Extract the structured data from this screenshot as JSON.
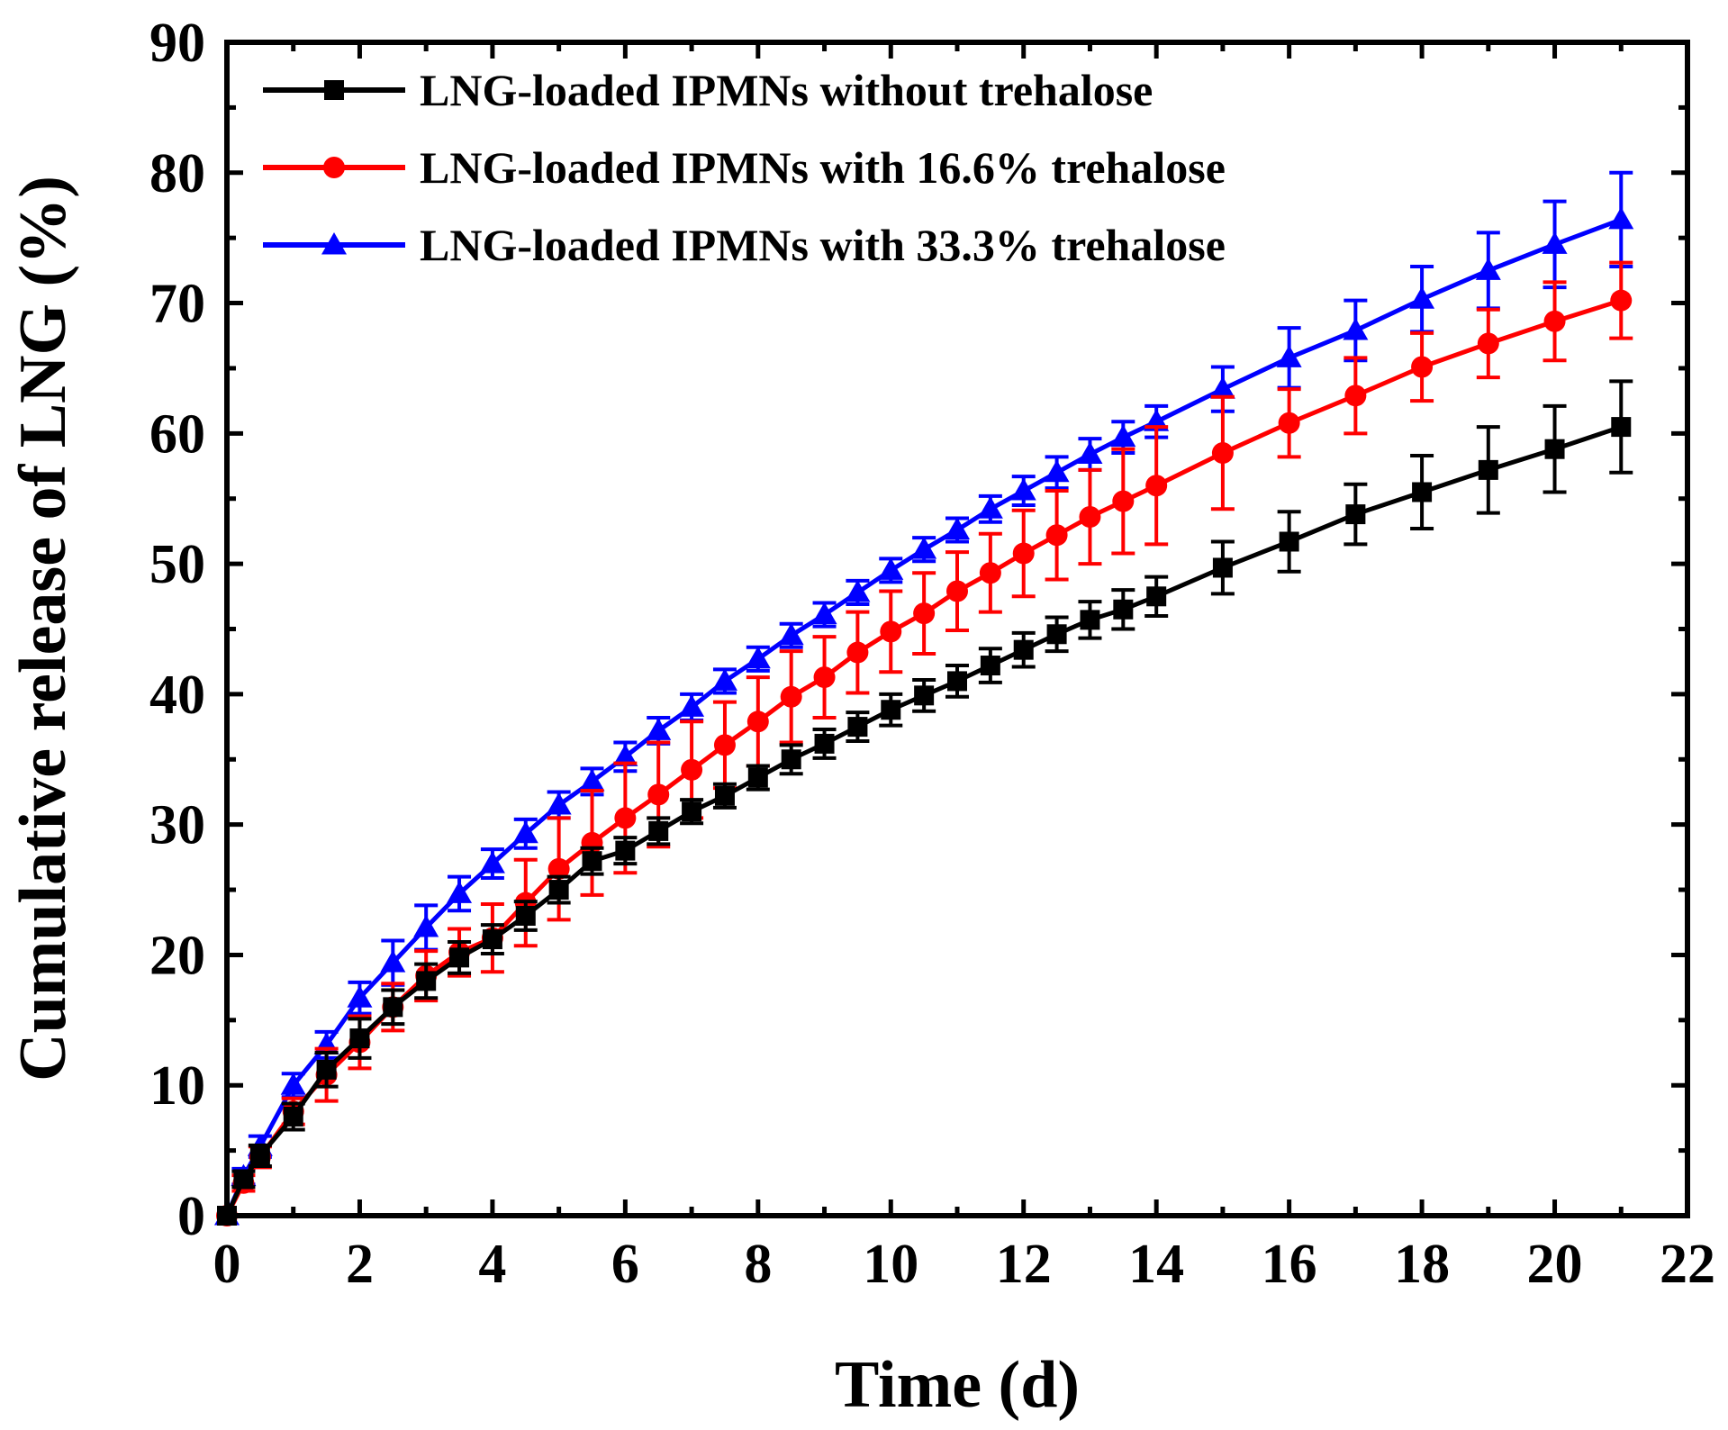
{
  "chart_data": {
    "type": "line",
    "title": "",
    "xlabel": "Time (d)",
    "ylabel": "Cumulative release of LNG (%)",
    "xlim": [
      0,
      22
    ],
    "ylim": [
      0,
      90
    ],
    "xticks": [
      0,
      2,
      4,
      6,
      8,
      10,
      12,
      14,
      16,
      18,
      20,
      22
    ],
    "yticks": [
      0,
      10,
      20,
      30,
      40,
      50,
      60,
      70,
      80,
      90
    ],
    "xtick_labels": [
      "0",
      "2",
      "4",
      "6",
      "8",
      "10",
      "12",
      "14",
      "16",
      "18",
      "20",
      "22"
    ],
    "ytick_labels": [
      "0",
      "10",
      "20",
      "30",
      "40",
      "50",
      "60",
      "70",
      "80",
      "90"
    ],
    "grid": false,
    "legend_position": "top-left",
    "x": [
      0,
      0.25,
      0.5,
      1,
      1.5,
      2,
      2.5,
      3,
      3.5,
      4,
      4.5,
      5,
      5.5,
      6,
      6.5,
      7,
      7.5,
      8,
      8.5,
      9,
      9.5,
      10,
      10.5,
      11,
      11.5,
      12,
      12.5,
      13,
      13.5,
      14,
      15,
      16,
      17,
      18,
      19,
      20,
      21
    ],
    "series": [
      {
        "name": "LNG-loaded IPMNs without trehalose",
        "color": "#000000",
        "marker": "square",
        "values": [
          0,
          2.8,
          4.6,
          7.6,
          11.2,
          13.6,
          16.0,
          18.0,
          19.8,
          21.2,
          23.0,
          25.0,
          27.2,
          28.0,
          29.5,
          31.0,
          32.2,
          33.6,
          35.0,
          36.2,
          37.5,
          38.8,
          39.9,
          41.0,
          42.2,
          43.4,
          44.6,
          45.7,
          46.5,
          47.5,
          49.7,
          51.7,
          53.8,
          55.5,
          57.2,
          58.8,
          60.5
        ],
        "errors": [
          0,
          0.6,
          0.8,
          1.0,
          1.3,
          1.5,
          1.3,
          1.3,
          1.2,
          1.1,
          1.1,
          1.0,
          1.0,
          1.0,
          1.0,
          0.9,
          0.9,
          0.9,
          1.1,
          1.1,
          1.1,
          1.2,
          1.2,
          1.2,
          1.3,
          1.3,
          1.3,
          1.4,
          1.5,
          1.5,
          2.0,
          2.3,
          2.3,
          2.8,
          3.3,
          3.3,
          3.5
        ]
      },
      {
        "name": "LNG-loaded IPMNs with 16.6% trehalose",
        "color": "#ff0000",
        "marker": "circle",
        "values": [
          0,
          2.5,
          4.5,
          8.0,
          10.8,
          13.3,
          16.0,
          18.4,
          20.2,
          21.3,
          24.0,
          26.6,
          28.6,
          30.5,
          32.3,
          34.2,
          36.1,
          37.9,
          39.8,
          41.3,
          43.2,
          44.8,
          46.2,
          47.9,
          49.3,
          50.8,
          52.2,
          53.6,
          54.8,
          56.0,
          58.5,
          60.8,
          62.9,
          65.1,
          66.9,
          68.6,
          70.2
        ],
        "errors": [
          0,
          0.6,
          0.8,
          1.0,
          2.0,
          2.0,
          1.8,
          1.9,
          1.8,
          2.6,
          3.3,
          3.9,
          4.0,
          4.2,
          4.0,
          3.7,
          3.3,
          3.4,
          3.5,
          3.1,
          3.1,
          3.1,
          3.1,
          3.0,
          3.0,
          3.3,
          3.4,
          3.6,
          4.0,
          4.5,
          4.3,
          2.6,
          2.9,
          2.6,
          2.6,
          3.0,
          2.9
        ]
      },
      {
        "name": "LNG-loaded IPMNs with 33.3% trehalose",
        "color": "#0000ff",
        "marker": "triangle",
        "values": [
          0,
          3.0,
          5.3,
          10.0,
          13.1,
          16.7,
          19.4,
          22.1,
          24.7,
          27.0,
          29.3,
          31.5,
          33.3,
          35.2,
          37.2,
          39.0,
          41.0,
          42.7,
          44.5,
          46.1,
          47.8,
          49.5,
          51.1,
          52.6,
          54.2,
          55.6,
          57.0,
          58.4,
          59.7,
          60.9,
          63.4,
          65.8,
          67.9,
          70.3,
          72.5,
          74.5,
          76.4
        ],
        "errors": [
          0,
          0.6,
          0.8,
          0.9,
          1.0,
          1.2,
          1.7,
          1.7,
          1.3,
          1.1,
          1.1,
          1.0,
          1.0,
          1.1,
          1.0,
          1.0,
          0.9,
          0.9,
          0.9,
          0.9,
          0.9,
          0.9,
          0.9,
          0.9,
          1.0,
          1.1,
          1.2,
          1.2,
          1.2,
          1.2,
          1.7,
          2.3,
          2.3,
          2.5,
          2.9,
          3.3,
          3.6
        ]
      }
    ]
  }
}
